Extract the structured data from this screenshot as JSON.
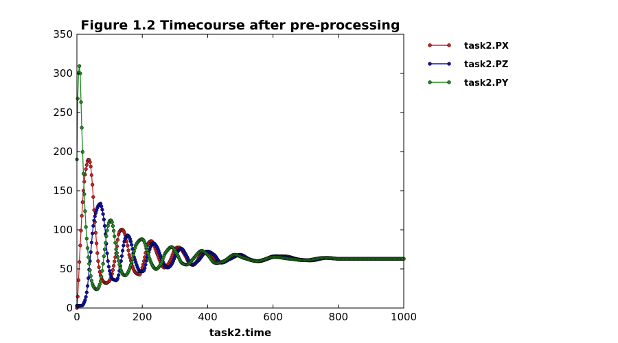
{
  "chart_data": {
    "type": "line",
    "title": "Figure 1.2 Timecourse after pre-processing",
    "xlabel": "task2.time",
    "ylabel": "",
    "xlim": [
      0,
      1000
    ],
    "ylim": [
      0,
      350
    ],
    "xticks": [
      0,
      200,
      400,
      600,
      800,
      1000
    ],
    "yticks": [
      0,
      50,
      100,
      150,
      200,
      250,
      300,
      350
    ],
    "grid": false,
    "legend": "outside-right-top",
    "series": [
      {
        "name": "task2.PX",
        "color": "#cc2222",
        "x": [
          0,
          10,
          20,
          30,
          38,
          45,
          55,
          65,
          75,
          90,
          105,
          120,
          128,
          140,
          150,
          160,
          175,
          190,
          195,
          205,
          215,
          230,
          245,
          260,
          270,
          285,
          300,
          315,
          330,
          345,
          360,
          380,
          400,
          420,
          440,
          470,
          500,
          530,
          560,
          600,
          640,
          680,
          720,
          760,
          800,
          850,
          900,
          950,
          1000
        ],
        "y": [
          0,
          80,
          150,
          183,
          189,
          170,
          110,
          60,
          38,
          32,
          40,
          70,
          95,
          100,
          90,
          68,
          48,
          43,
          45,
          60,
          80,
          85,
          70,
          55,
          52,
          60,
          75,
          77,
          68,
          57,
          56,
          68,
          72,
          64,
          58,
          64,
          68,
          62,
          60,
          65,
          66,
          62,
          61,
          64,
          63,
          63,
          63,
          63,
          63
        ]
      },
      {
        "name": "task2.PZ",
        "color": "#1111aa",
        "x": [
          0,
          10,
          20,
          30,
          40,
          50,
          60,
          70,
          75,
          85,
          95,
          105,
          115,
          125,
          135,
          145,
          155,
          165,
          175,
          190,
          205,
          215,
          230,
          245,
          260,
          275,
          290,
          305,
          320,
          335,
          350,
          370,
          395,
          420,
          440,
          470,
          500,
          530,
          560,
          600,
          640,
          680,
          720,
          760,
          800,
          850,
          900,
          950,
          1000
        ],
        "y": [
          3,
          3,
          5,
          20,
          60,
          105,
          125,
          133,
          130,
          105,
          60,
          40,
          36,
          38,
          60,
          85,
          93,
          85,
          65,
          48,
          48,
          65,
          82,
          78,
          62,
          52,
          56,
          70,
          76,
          67,
          56,
          60,
          72,
          68,
          58,
          63,
          68,
          62,
          60,
          66,
          65,
          62,
          61,
          64,
          63,
          63,
          63,
          63,
          63
        ]
      },
      {
        "name": "task2.PY",
        "color": "#228822",
        "x": [
          0,
          3,
          6,
          8,
          10,
          13,
          17,
          22,
          28,
          35,
          45,
          55,
          65,
          75,
          85,
          95,
          105,
          112,
          120,
          135,
          150,
          165,
          180,
          200,
          210,
          225,
          240,
          255,
          270,
          290,
          305,
          320,
          340,
          360,
          380,
          400,
          420,
          450,
          480,
          510,
          550,
          600,
          650,
          700,
          750,
          800,
          850,
          900,
          1000
        ],
        "y": [
          190,
          280,
          305,
          309,
          300,
          255,
          205,
          150,
          100,
          65,
          35,
          25,
          25,
          40,
          75,
          105,
          112,
          100,
          75,
          48,
          42,
          55,
          80,
          88,
          80,
          60,
          50,
          55,
          70,
          78,
          70,
          58,
          56,
          65,
          73,
          68,
          58,
          60,
          68,
          64,
          60,
          65,
          63,
          61,
          64,
          63,
          63,
          63,
          63
        ]
      }
    ]
  }
}
